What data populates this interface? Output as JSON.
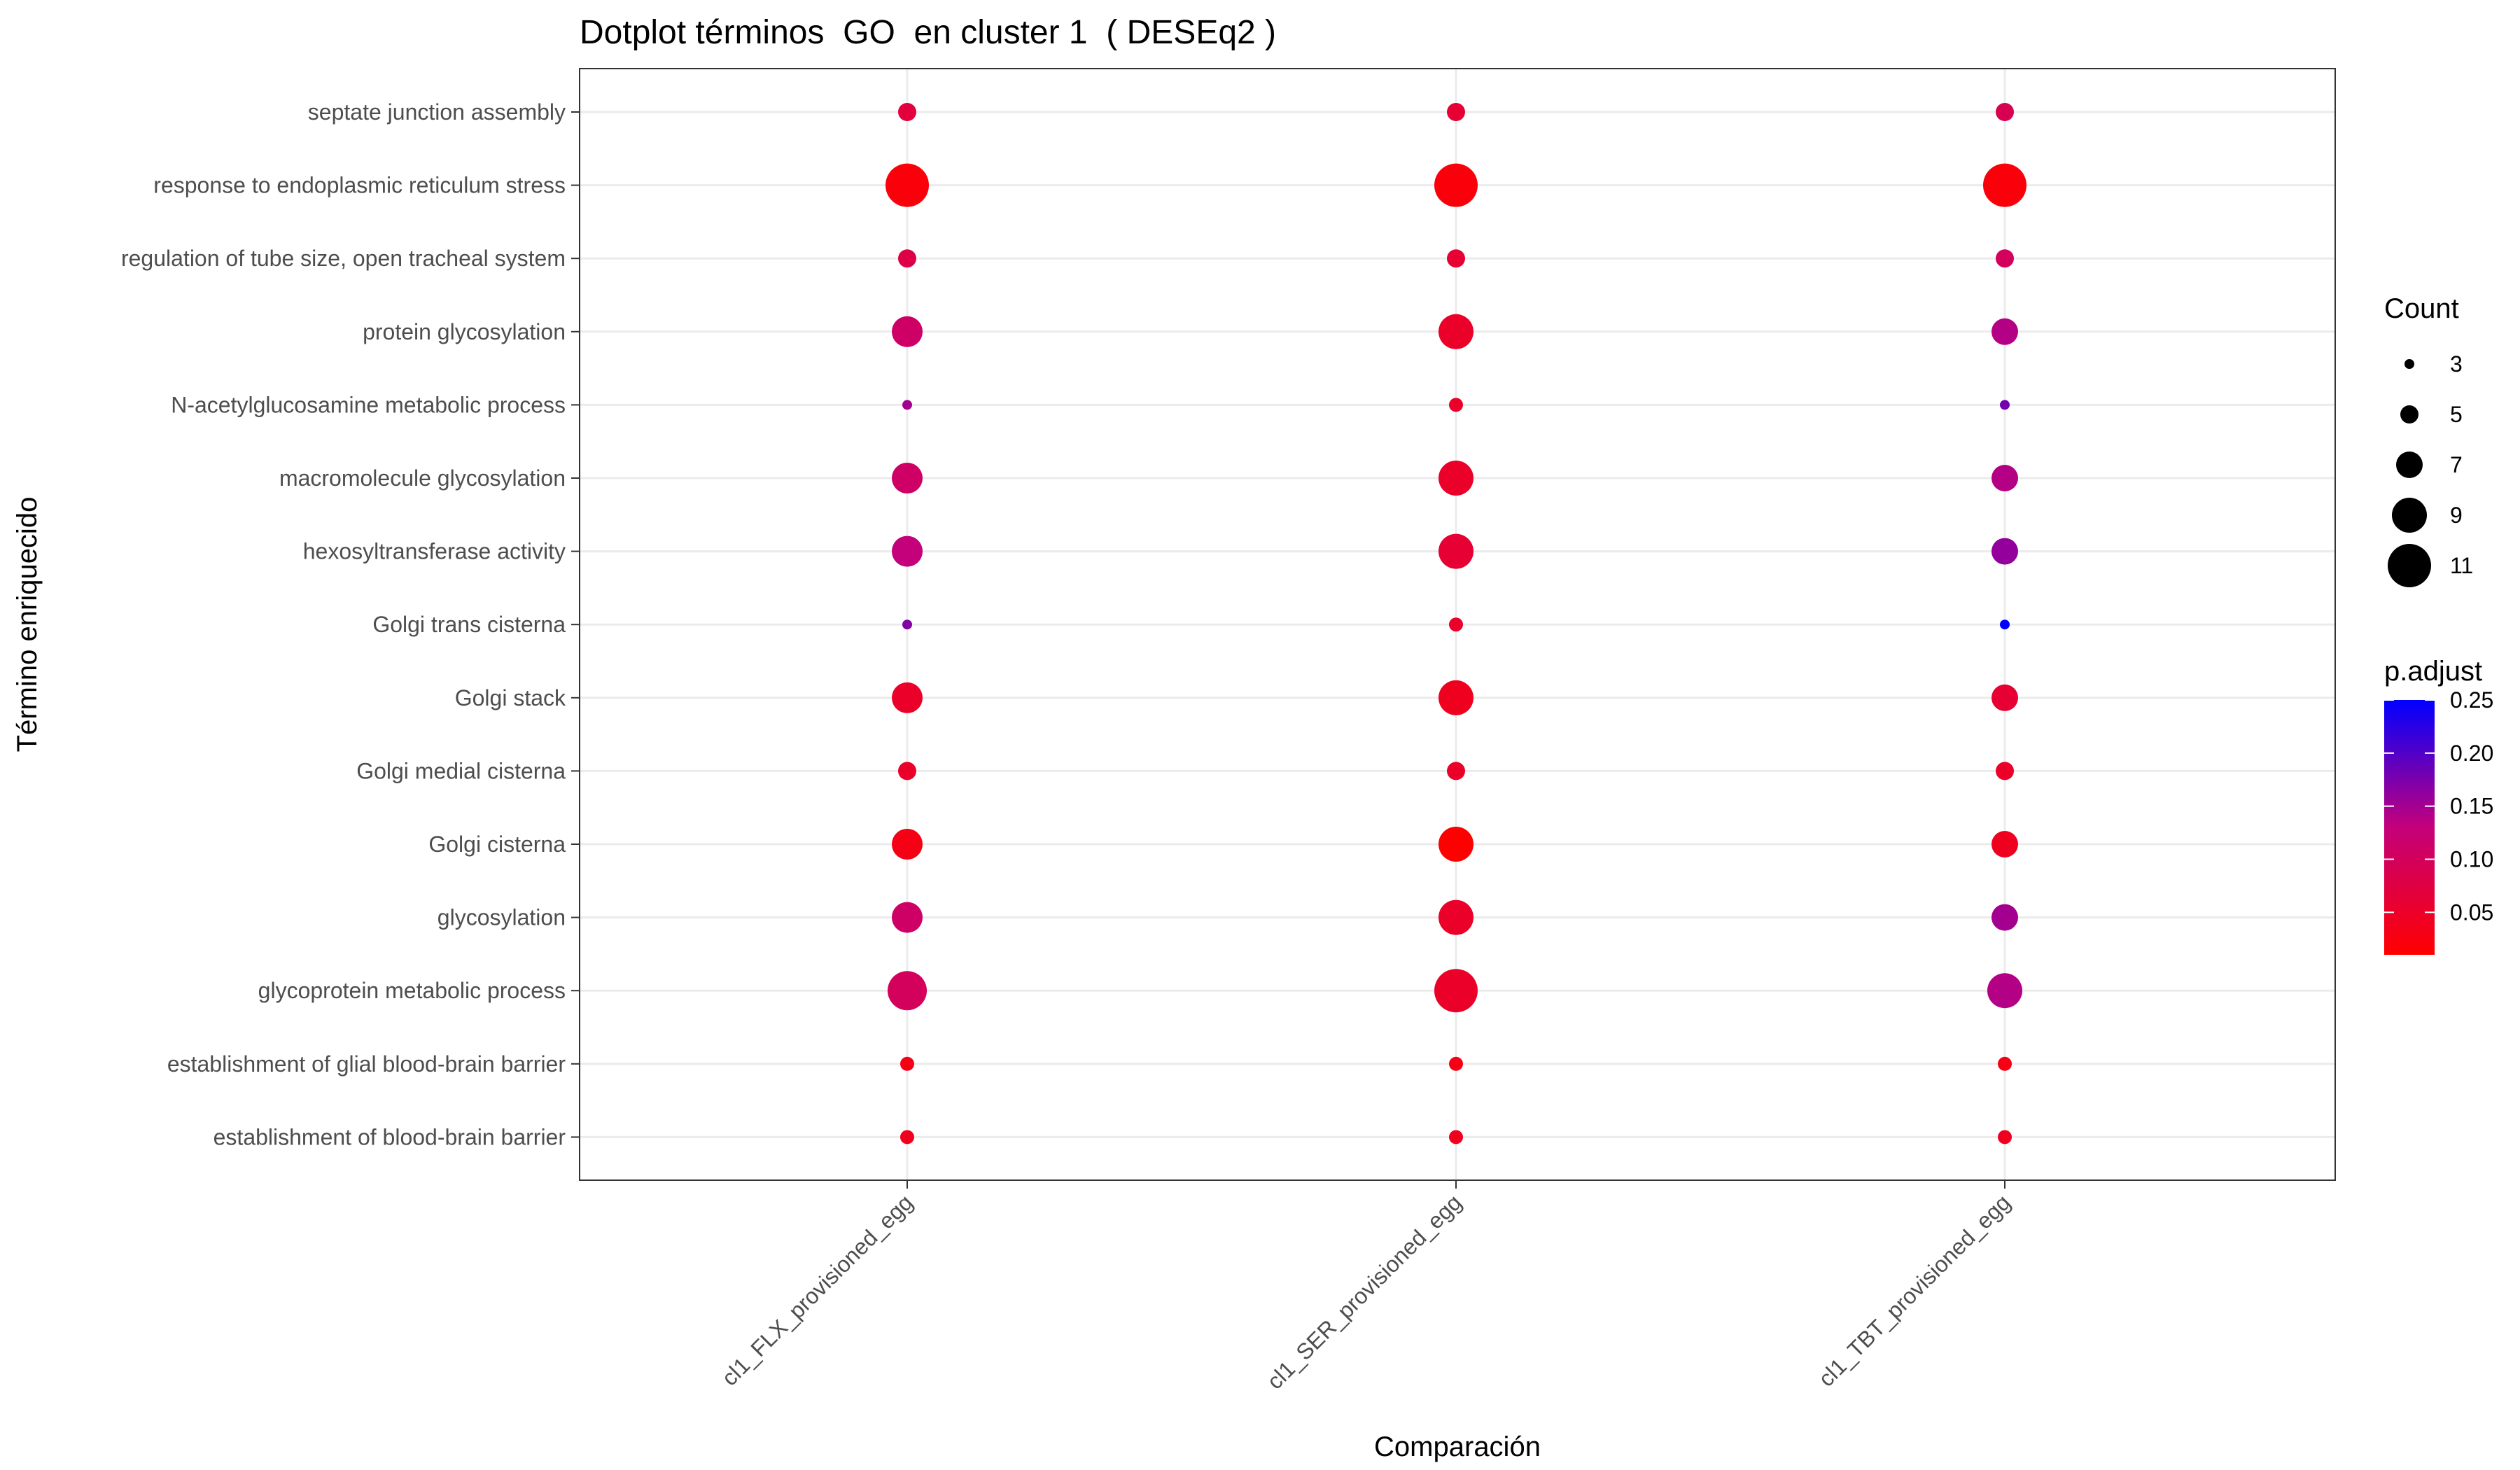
{
  "chart_data": {
    "type": "scatter",
    "title": "Dotplot términos  GO  en cluster 1  ( DESEq2 )",
    "xlabel": "Comparación",
    "ylabel": "Término enriquecido",
    "categories_x": [
      "cl1_FLX_provisioned_egg",
      "cl1_SER_provisioned_egg",
      "cl1_TBT_provisioned_egg"
    ],
    "categories_y": [
      "septate junction assembly",
      "response to endoplasmic reticulum stress",
      "regulation of tube size, open tracheal system",
      "protein glycosylation",
      "N-acetylglucosamine metabolic process",
      "macromolecule glycosylation",
      "hexosyltransferase activity",
      "Golgi trans cisterna",
      "Golgi stack",
      "Golgi medial cisterna",
      "Golgi cisterna",
      "glycosylation",
      "glycoprotein metabolic process",
      "establishment of glial blood-brain barrier",
      "establishment of blood-brain barrier"
    ],
    "points": [
      {
        "x": "cl1_FLX_provisioned_egg",
        "y": "septate junction assembly",
        "count": 5,
        "p_adjust": 0.07
      },
      {
        "x": "cl1_SER_provisioned_egg",
        "y": "septate junction assembly",
        "count": 5,
        "p_adjust": 0.06
      },
      {
        "x": "cl1_TBT_provisioned_egg",
        "y": "septate junction assembly",
        "count": 5,
        "p_adjust": 0.09
      },
      {
        "x": "cl1_FLX_provisioned_egg",
        "y": "response to endoplasmic reticulum stress",
        "count": 11,
        "p_adjust": 0.02
      },
      {
        "x": "cl1_SER_provisioned_egg",
        "y": "response to endoplasmic reticulum stress",
        "count": 11,
        "p_adjust": 0.02
      },
      {
        "x": "cl1_TBT_provisioned_egg",
        "y": "response to endoplasmic reticulum stress",
        "count": 11,
        "p_adjust": 0.02
      },
      {
        "x": "cl1_FLX_provisioned_egg",
        "y": "regulation of tube size, open tracheal system",
        "count": 5,
        "p_adjust": 0.08
      },
      {
        "x": "cl1_SER_provisioned_egg",
        "y": "regulation of tube size, open tracheal system",
        "count": 5,
        "p_adjust": 0.06
      },
      {
        "x": "cl1_TBT_provisioned_egg",
        "y": "regulation of tube size, open tracheal system",
        "count": 5,
        "p_adjust": 0.1
      },
      {
        "x": "cl1_FLX_provisioned_egg",
        "y": "protein glycosylation",
        "count": 8,
        "p_adjust": 0.11
      },
      {
        "x": "cl1_SER_provisioned_egg",
        "y": "protein glycosylation",
        "count": 9,
        "p_adjust": 0.05
      },
      {
        "x": "cl1_TBT_provisioned_egg",
        "y": "protein glycosylation",
        "count": 7,
        "p_adjust": 0.14
      },
      {
        "x": "cl1_FLX_provisioned_egg",
        "y": "N-acetylglucosamine metabolic process",
        "count": 3,
        "p_adjust": 0.15
      },
      {
        "x": "cl1_SER_provisioned_egg",
        "y": "N-acetylglucosamine metabolic process",
        "count": 4,
        "p_adjust": 0.05
      },
      {
        "x": "cl1_TBT_provisioned_egg",
        "y": "N-acetylglucosamine metabolic process",
        "count": 3,
        "p_adjust": 0.18
      },
      {
        "x": "cl1_FLX_provisioned_egg",
        "y": "macromolecule glycosylation",
        "count": 8,
        "p_adjust": 0.11
      },
      {
        "x": "cl1_SER_provisioned_egg",
        "y": "macromolecule glycosylation",
        "count": 9,
        "p_adjust": 0.05
      },
      {
        "x": "cl1_TBT_provisioned_egg",
        "y": "macromolecule glycosylation",
        "count": 7,
        "p_adjust": 0.14
      },
      {
        "x": "cl1_FLX_provisioned_egg",
        "y": "hexosyltransferase activity",
        "count": 8,
        "p_adjust": 0.13
      },
      {
        "x": "cl1_SER_provisioned_egg",
        "y": "hexosyltransferase activity",
        "count": 9,
        "p_adjust": 0.06
      },
      {
        "x": "cl1_TBT_provisioned_egg",
        "y": "hexosyltransferase activity",
        "count": 7,
        "p_adjust": 0.16
      },
      {
        "x": "cl1_FLX_provisioned_egg",
        "y": "Golgi trans cisterna",
        "count": 3,
        "p_adjust": 0.17
      },
      {
        "x": "cl1_SER_provisioned_egg",
        "y": "Golgi trans cisterna",
        "count": 4,
        "p_adjust": 0.05
      },
      {
        "x": "cl1_TBT_provisioned_egg",
        "y": "Golgi trans cisterna",
        "count": 3,
        "p_adjust": 0.25
      },
      {
        "x": "cl1_FLX_provisioned_egg",
        "y": "Golgi stack",
        "count": 8,
        "p_adjust": 0.05
      },
      {
        "x": "cl1_SER_provisioned_egg",
        "y": "Golgi stack",
        "count": 9,
        "p_adjust": 0.04
      },
      {
        "x": "cl1_TBT_provisioned_egg",
        "y": "Golgi stack",
        "count": 7,
        "p_adjust": 0.06
      },
      {
        "x": "cl1_FLX_provisioned_egg",
        "y": "Golgi medial cisterna",
        "count": 5,
        "p_adjust": 0.05
      },
      {
        "x": "cl1_SER_provisioned_egg",
        "y": "Golgi medial cisterna",
        "count": 5,
        "p_adjust": 0.05
      },
      {
        "x": "cl1_TBT_provisioned_egg",
        "y": "Golgi medial cisterna",
        "count": 5,
        "p_adjust": 0.05
      },
      {
        "x": "cl1_FLX_provisioned_egg",
        "y": "Golgi cisterna",
        "count": 8,
        "p_adjust": 0.03
      },
      {
        "x": "cl1_SER_provisioned_egg",
        "y": "Golgi cisterna",
        "count": 9,
        "p_adjust": 0.01
      },
      {
        "x": "cl1_TBT_provisioned_egg",
        "y": "Golgi cisterna",
        "count": 7,
        "p_adjust": 0.04
      },
      {
        "x": "cl1_FLX_provisioned_egg",
        "y": "glycosylation",
        "count": 8,
        "p_adjust": 0.11
      },
      {
        "x": "cl1_SER_provisioned_egg",
        "y": "glycosylation",
        "count": 9,
        "p_adjust": 0.05
      },
      {
        "x": "cl1_TBT_provisioned_egg",
        "y": "glycosylation",
        "count": 7,
        "p_adjust": 0.15
      },
      {
        "x": "cl1_FLX_provisioned_egg",
        "y": "glycoprotein metabolic process",
        "count": 10,
        "p_adjust": 0.1
      },
      {
        "x": "cl1_SER_provisioned_egg",
        "y": "glycoprotein metabolic process",
        "count": 11,
        "p_adjust": 0.05
      },
      {
        "x": "cl1_TBT_provisioned_egg",
        "y": "glycoprotein metabolic process",
        "count": 9,
        "p_adjust": 0.14
      },
      {
        "x": "cl1_FLX_provisioned_egg",
        "y": "establishment of glial blood-brain barrier",
        "count": 4,
        "p_adjust": 0.03
      },
      {
        "x": "cl1_SER_provisioned_egg",
        "y": "establishment of glial blood-brain barrier",
        "count": 4,
        "p_adjust": 0.03
      },
      {
        "x": "cl1_TBT_provisioned_egg",
        "y": "establishment of glial blood-brain barrier",
        "count": 4,
        "p_adjust": 0.03
      },
      {
        "x": "cl1_FLX_provisioned_egg",
        "y": "establishment of blood-brain barrier",
        "count": 4,
        "p_adjust": 0.04
      },
      {
        "x": "cl1_SER_provisioned_egg",
        "y": "establishment of blood-brain barrier",
        "count": 4,
        "p_adjust": 0.04
      },
      {
        "x": "cl1_TBT_provisioned_egg",
        "y": "establishment of blood-brain barrier",
        "count": 4,
        "p_adjust": 0.04
      }
    ],
    "size_legend": {
      "title": "Count",
      "values": [
        3,
        5,
        7,
        9,
        11
      ],
      "labels": [
        "3",
        "5",
        "7",
        "9",
        "11"
      ],
      "range": [
        3,
        11
      ]
    },
    "color_legend": {
      "title": "p.adjust",
      "ticks": [
        0.05,
        0.1,
        0.15,
        0.2,
        0.25
      ],
      "labels": [
        "0.05",
        "0.10",
        "0.15",
        "0.20",
        "0.25"
      ],
      "range": [
        0.01,
        0.25
      ],
      "low_color": "#ff0000",
      "high_color": "#0000ff"
    },
    "grid": true,
    "legend_position": "right"
  }
}
